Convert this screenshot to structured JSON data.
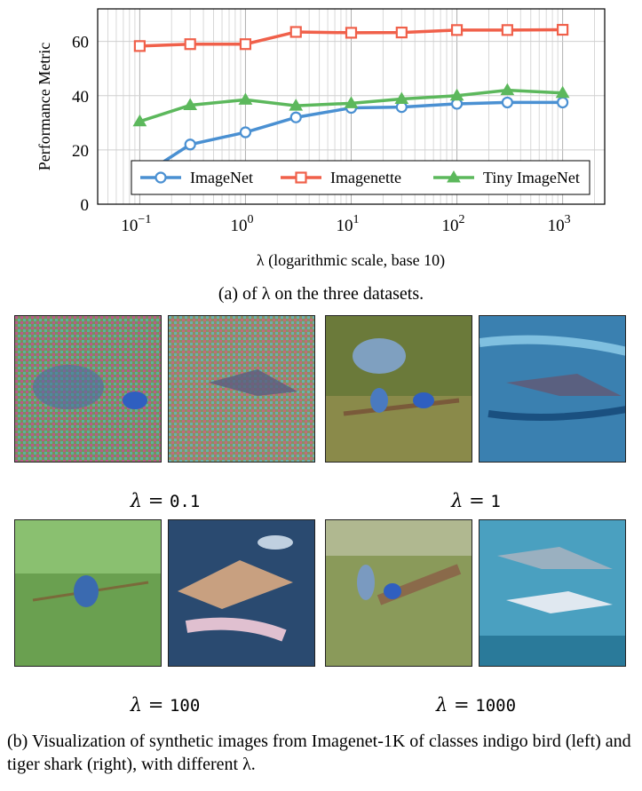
{
  "chart_data": {
    "type": "line",
    "x": [
      0.1,
      0.3,
      1,
      3,
      10,
      30,
      100,
      300,
      1000
    ],
    "series": [
      {
        "name": "ImageNet",
        "color": "#4a90d2",
        "marker": "circle",
        "values": [
          10,
          22,
          26.5,
          32,
          35.5,
          35.8,
          37,
          37.5,
          37.5
        ]
      },
      {
        "name": "Imagenette",
        "color": "#f0604a",
        "marker": "square",
        "values": [
          58.3,
          59,
          59,
          63.5,
          63.2,
          63.3,
          64.2,
          64.2,
          64.3
        ]
      },
      {
        "name": "Tiny ImageNet",
        "color": "#5cb85c",
        "marker": "triangle",
        "values": [
          30.5,
          36.5,
          38.5,
          36.3,
          37.2,
          38.8,
          40,
          42,
          41
        ]
      }
    ],
    "ylabel": "Performance Metric",
    "xlabel": "λ (logarithmic scale, base 10)",
    "xscale": "log",
    "xlim": [
      0.04,
      2500
    ],
    "ylim": [
      0,
      72
    ],
    "yticks": [
      0,
      20,
      40,
      60
    ],
    "xticks": [
      {
        "base": "10",
        "exp": "−1"
      },
      {
        "base": "10",
        "exp": "0"
      },
      {
        "base": "10",
        "exp": "1"
      },
      {
        "base": "10",
        "exp": "2"
      },
      {
        "base": "10",
        "exp": "3"
      }
    ],
    "grid": true,
    "legend_position": "bottom-center"
  },
  "caption_a": "(a) of λ on the three datasets.",
  "lambda_labels": [
    {
      "symbol": "λ",
      "eq": "=",
      "value": "0.1"
    },
    {
      "symbol": "λ",
      "eq": "=",
      "value": "1"
    },
    {
      "symbol": "λ",
      "eq": "=",
      "value": "100"
    },
    {
      "symbol": "λ",
      "eq": "=",
      "value": "1000"
    }
  ],
  "caption_b": "(b) Visualization of synthetic images from Imagenet-1K of classes indigo bird (left) and tiger shark (right), with different λ."
}
